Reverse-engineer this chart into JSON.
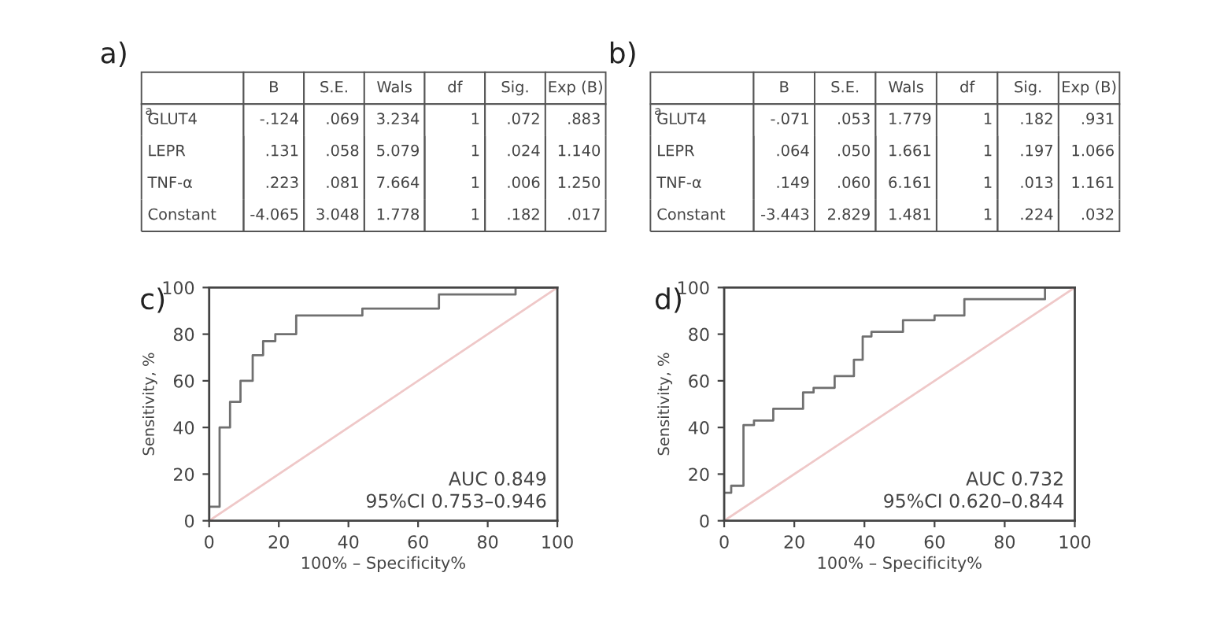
{
  "chart_data": [
    {
      "type": "other",
      "title": "a)",
      "categories": [
        null,
        "B",
        "S.E.",
        "Wals",
        "df",
        "Sig.",
        "Exp (B)"
      ],
      "annotations": [
        "a",
        "GLUT4",
        "-.124",
        ".069",
        "3.234",
        "1",
        ".072",
        ".883",
        "LEPR",
        ".131",
        ".058",
        "5.079",
        "1",
        ".024",
        "1.140",
        "TNF-α",
        ".223",
        ".081",
        "7.664",
        "1",
        ".006",
        "1.250",
        "Constant",
        "-4.065",
        "3.048",
        "1.778",
        "1",
        ".182",
        ".017"
      ]
    },
    {
      "type": "other",
      "title": "b)",
      "categories": [
        null,
        "B",
        "S.E.",
        "Wals",
        "df",
        "Sig.",
        "Exp (B)"
      ],
      "annotations": [
        "a",
        "GLUT4",
        "-.071",
        ".053",
        "1.779",
        "1",
        ".182",
        ".931",
        "LEPR",
        ".064",
        ".050",
        "1.661",
        "1",
        ".197",
        "1.066",
        "TNF-α",
        ".149",
        ".060",
        "6.161",
        "1",
        ".013",
        "1.161",
        "Constant",
        "-3.443",
        "2.829",
        "1.481",
        "1",
        ".224",
        ".032"
      ]
    },
    {
      "type": "step",
      "title": "c)",
      "xlabel": "100% – Specificity%",
      "ylabel": "Sensitivity, %",
      "xlim": [
        0,
        100
      ],
      "ylim": [
        0,
        100
      ],
      "xticks": [
        0,
        20,
        40,
        60,
        80,
        100
      ],
      "yticks": [
        0,
        20,
        40,
        60,
        80,
        100
      ],
      "grid": false,
      "legend": false,
      "series": [
        {
          "type": "step",
          "color": "#707070",
          "x": [
            0,
            0,
            3,
            6,
            9,
            12.5,
            15.5,
            19,
            25,
            44,
            66,
            88,
            100
          ],
          "values": [
            0,
            6,
            40,
            51,
            60,
            71,
            77,
            80,
            88,
            91,
            97,
            100,
            100
          ]
        },
        {
          "type": "line",
          "color": "#efc8c8",
          "x": [
            0,
            100
          ],
          "values": [
            0,
            100
          ]
        }
      ],
      "annotations": [
        "AUC 0.849",
        "95%CI 0.753–0.946"
      ]
    },
    {
      "type": "step",
      "title": "d)",
      "xlabel": "100% – Specificity%",
      "ylabel": "Sensitivity, %",
      "xlim": [
        0,
        100
      ],
      "ylim": [
        0,
        100
      ],
      "xticks": [
        0,
        20,
        40,
        60,
        80,
        100
      ],
      "yticks": [
        0,
        20,
        40,
        60,
        80,
        100
      ],
      "grid": false,
      "legend": false,
      "series": [
        {
          "type": "step",
          "color": "#707070",
          "x": [
            0,
            2,
            5.5,
            8.5,
            14,
            22.5,
            25.5,
            31.5,
            37,
            39.5,
            42,
            51,
            60,
            68.5,
            91.5,
            100
          ],
          "values": [
            12,
            15,
            41,
            43,
            48,
            55,
            57,
            62,
            69,
            79,
            81,
            86,
            88,
            95,
            100,
            100
          ]
        },
        {
          "type": "line",
          "color": "#efc8c8",
          "x": [
            0,
            100
          ],
          "values": [
            0,
            100
          ]
        }
      ],
      "annotations": [
        "AUC 0.732",
        "95%CI 0.620–0.844"
      ]
    }
  ]
}
